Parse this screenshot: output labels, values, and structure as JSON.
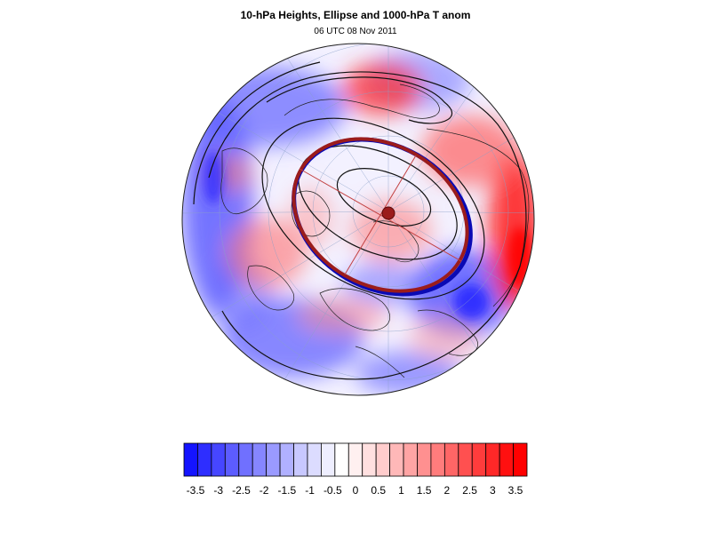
{
  "figure": {
    "title": "10-hPa Heights, Ellipse and 1000-hPa T anom",
    "subtitle": "06 UTC 08 Nov 2011"
  },
  "map": {
    "projection": "polar-stereographic",
    "hemisphere": "northern",
    "overlays": [
      "10-hPa height contours",
      "fitted ellipse",
      "ellipse axes",
      "1000-hPa temperature anomaly shading",
      "coastlines",
      "lat-lon grid"
    ],
    "colors": {
      "ellipse_red": "#9b1c1c",
      "ellipse_blue": "#0a0ab4",
      "contour": "#111111"
    }
  },
  "colorbar": {
    "tick_labels": [
      "-3.5",
      "-3",
      "-2.5",
      "-2",
      "-1.5",
      "-1",
      "-0.5",
      "0",
      "0.5",
      "1",
      "1.5",
      "2",
      "2.5",
      "3",
      "3.5"
    ],
    "bin_colors": [
      "#1414ff",
      "#2e2eff",
      "#4646ff",
      "#5c5cff",
      "#7070ff",
      "#8686ff",
      "#9a9aff",
      "#b0b0ff",
      "#c8c8ff",
      "#dcdcff",
      "#eeeeff",
      "#ffffff",
      "#fff0f0",
      "#ffe0e0",
      "#ffcccc",
      "#ffb8b8",
      "#ffa4a4",
      "#ff9090",
      "#ff7c7c",
      "#ff6666",
      "#ff5050",
      "#ff3c3c",
      "#ff2828",
      "#ff1010",
      "#ff0000"
    ],
    "colors": {
      "neg_max": "#1010ff",
      "pos_max": "#ff0000"
    }
  }
}
